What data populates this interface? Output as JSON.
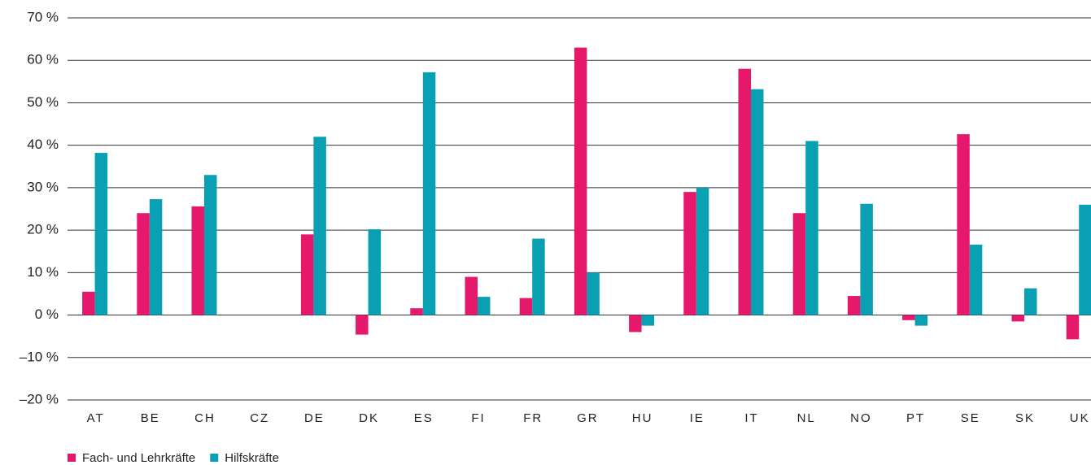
{
  "chart_data": {
    "type": "bar",
    "categories": [
      "AT",
      "BE",
      "CH",
      "CZ",
      "DE",
      "DK",
      "ES",
      "FI",
      "FR",
      "GR",
      "HU",
      "IE",
      "IT",
      "NL",
      "NO",
      "PT",
      "SE",
      "SK",
      "UK"
    ],
    "series": [
      {
        "name": "Fach- und Lehrkräfte",
        "color": "#e5186b",
        "values": [
          5.5,
          24,
          25.6,
          null,
          19,
          -4.6,
          1.6,
          9,
          4,
          63,
          -4,
          29,
          58,
          24,
          4.5,
          -1.2,
          42.6,
          -1.5,
          -5.7
        ]
      },
      {
        "name": "Hilfskräfte",
        "color": "#0aa0b4",
        "values": [
          38.2,
          27.3,
          33,
          null,
          42,
          20.2,
          57.2,
          4.3,
          18,
          10,
          -2.5,
          30,
          53.2,
          41,
          26.2,
          -2.5,
          16.6,
          6.3,
          26
        ]
      }
    ],
    "ylim": [
      -20,
      70
    ],
    "yticks": [
      {
        "value": -20,
        "label": "–20 %"
      },
      {
        "value": -10,
        "label": "–10 %"
      },
      {
        "value": 0,
        "label": "0 %"
      },
      {
        "value": 10,
        "label": "10 %"
      },
      {
        "value": 20,
        "label": "20 %"
      },
      {
        "value": 30,
        "label": "30 %"
      },
      {
        "value": 40,
        "label": "40 %"
      },
      {
        "value": 50,
        "label": "50 %"
      },
      {
        "value": 60,
        "label": "60 %"
      },
      {
        "value": 70,
        "label": "70 %"
      }
    ],
    "grid": true,
    "legend": "bottom-left"
  }
}
